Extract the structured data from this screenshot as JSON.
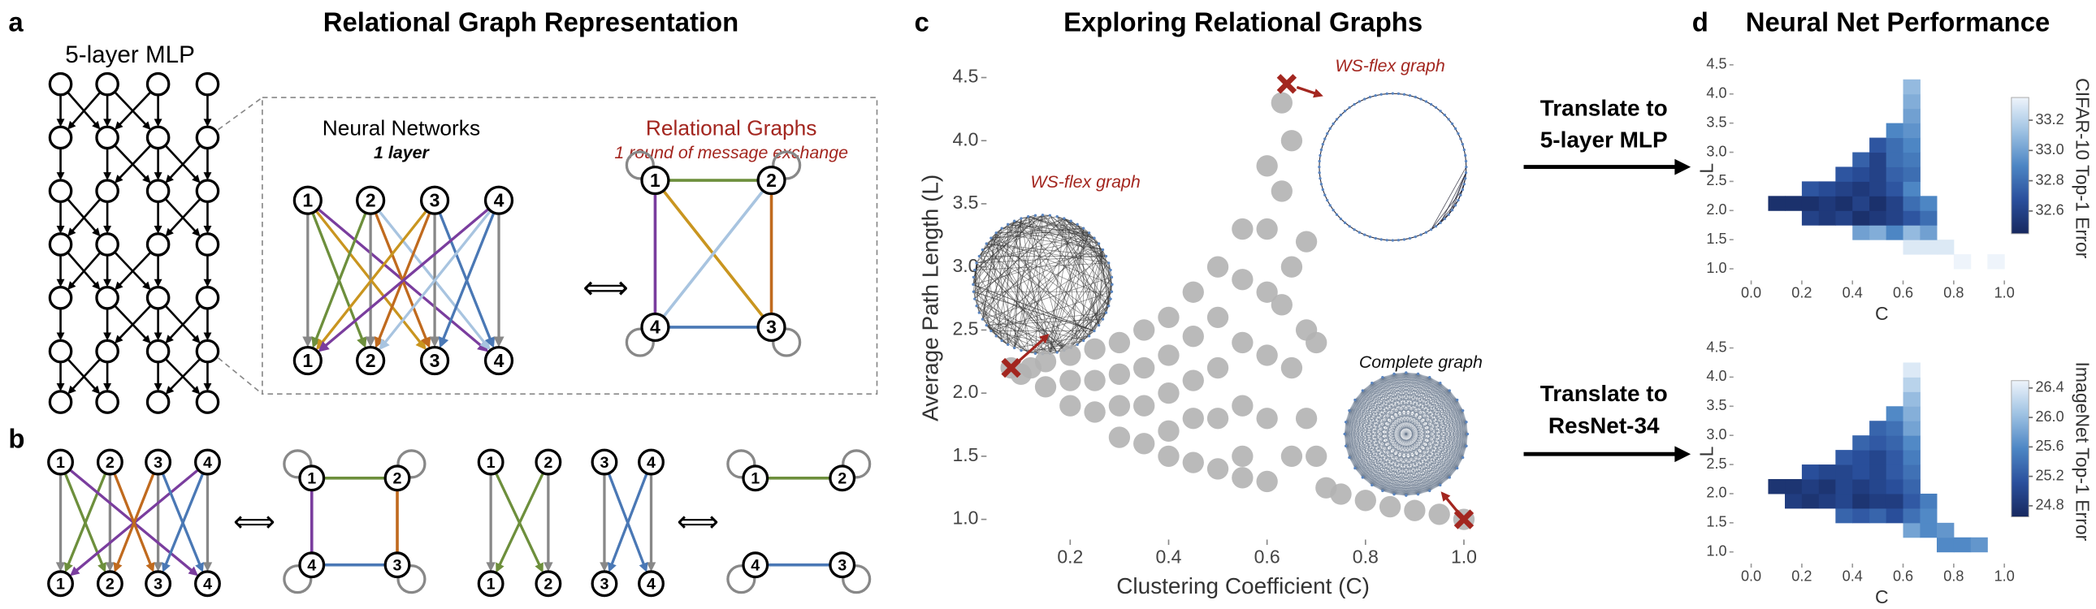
{
  "panels": {
    "a": {
      "label": "a",
      "title": "Relational Graph Representation",
      "mlp_title": "5-layer MLP",
      "nn_title": "Neural Networks",
      "nn_subtitle": "1 layer",
      "rg_title": "Relational Graphs",
      "rg_subtitle": "1 round of message exchange",
      "nodes": [
        "1",
        "2",
        "3",
        "4"
      ],
      "equiv": "⟺"
    },
    "b": {
      "label": "b",
      "nodes": [
        "1",
        "2",
        "3",
        "4"
      ],
      "equiv": "⟺"
    },
    "c": {
      "label": "c"
    },
    "d": {
      "label": "d",
      "title": "Neural Net Performance"
    },
    "translate": [
      [
        "Translate to",
        "5-layer MLP"
      ],
      [
        "Translate to",
        "ResNet-34"
      ]
    ]
  },
  "chart_data": [
    {
      "type": "scatter",
      "title": "Exploring Relational Graphs",
      "xlabel": "Clustering Coefficient (C)",
      "ylabel": "Average Path Length (L)",
      "xlim": [
        0.03,
        1.04
      ],
      "ylim": [
        0.84,
        4.67
      ],
      "xticks": [
        0.2,
        0.4,
        0.6,
        0.8,
        {
          "value": 1,
          "label": "1.0"
        }
      ],
      "yticks": [
        {
          "value": 1,
          "label": "1.0"
        },
        1.5,
        {
          "value": 2,
          "label": "2.0"
        },
        2.5,
        {
          "value": 3,
          "label": "3.0"
        },
        3.5,
        {
          "value": 4,
          "label": "4.0"
        },
        4.5
      ],
      "series": [
        {
          "color": "#b3b3b3",
          "marker": "dot",
          "x": [
            0.08,
            0.1,
            0.12,
            0.15,
            0.15,
            0.2,
            0.2,
            0.2,
            0.25,
            0.25,
            0.25,
            0.3,
            0.3,
            0.3,
            0.3,
            0.35,
            0.35,
            0.35,
            0.35,
            0.4,
            0.4,
            0.4,
            0.4,
            0.4,
            0.45,
            0.45,
            0.45,
            0.45,
            0.45,
            0.5,
            0.5,
            0.5,
            0.5,
            0.5,
            0.55,
            0.55,
            0.55,
            0.55,
            0.55,
            0.55,
            0.6,
            0.6,
            0.6,
            0.6,
            0.6,
            0.6,
            0.63,
            0.63,
            0.63,
            0.65,
            0.65,
            0.65,
            0.65,
            0.68,
            0.68,
            0.68,
            0.7,
            0.7,
            0.72,
            0.75,
            0.8,
            0.85,
            0.9,
            0.95,
            1.0
          ],
          "values": [
            2.2,
            2.15,
            2.2,
            2.25,
            2.05,
            2.3,
            2.1,
            1.9,
            2.35,
            2.1,
            1.85,
            2.4,
            2.15,
            1.9,
            1.65,
            2.5,
            2.2,
            1.9,
            1.6,
            2.6,
            2.3,
            2.0,
            1.7,
            1.5,
            2.8,
            2.45,
            2.1,
            1.8,
            1.45,
            3.0,
            2.6,
            2.2,
            1.8,
            1.4,
            3.3,
            2.9,
            2.4,
            1.9,
            1.5,
            1.33,
            3.8,
            3.3,
            2.8,
            2.3,
            1.8,
            1.3,
            4.3,
            3.6,
            2.7,
            4.0,
            3.0,
            2.2,
            1.5,
            3.2,
            2.5,
            1.8,
            2.4,
            1.5,
            1.25,
            1.2,
            1.15,
            1.1,
            1.07,
            1.04,
            1.0
          ]
        },
        {
          "color": "#a3261f",
          "marker": "x",
          "x": [
            0.08,
            0.64,
            1.0
          ],
          "values": [
            2.2,
            4.45,
            1.0
          ]
        }
      ],
      "annotations": [
        "WS-flex graph",
        "WS-flex graph",
        "Complete graph"
      ]
    },
    {
      "type": "heatmap",
      "xlabel": "C",
      "ylabel": "L",
      "colorbar_label": "CIFAR-10 Top-1 Error",
      "xlim": [
        -0.07,
        1.07
      ],
      "ylim": [
        0.8,
        4.65
      ],
      "xticks": [
        {
          "value": 0,
          "label": "0.0"
        },
        0.2,
        0.4,
        0.6,
        0.8,
        {
          "value": 1,
          "label": "1.0"
        }
      ],
      "yticks": [
        {
          "value": 1,
          "label": "1.0"
        },
        1.5,
        {
          "value": 2,
          "label": "2.0"
        },
        2.5,
        {
          "value": 3,
          "label": "3.0"
        },
        3.5,
        {
          "value": 4,
          "label": "4.0"
        },
        4.5
      ],
      "xbins": [
        0.067,
        0.133,
        0.2,
        0.267,
        0.333,
        0.4,
        0.467,
        0.533,
        0.6,
        0.667,
        0.733,
        0.8,
        0.867,
        0.933,
        1.0
      ],
      "ybins": [
        1.0,
        1.25,
        1.5,
        1.75,
        2.0,
        2.25,
        2.5,
        2.75,
        3.0,
        3.25,
        3.5,
        3.75,
        4.0,
        4.25,
        4.5
      ],
      "clim": [
        32.45,
        33.35
      ],
      "cticks": [
        32.6,
        32.8,
        {
          "value": 33,
          "label": "33.0"
        },
        33.2
      ],
      "values": [
        [
          null,
          null,
          null,
          null,
          null,
          null,
          null,
          null,
          null,
          null,
          null,
          33.35,
          null,
          33.35
        ],
        [
          null,
          null,
          null,
          null,
          null,
          null,
          null,
          null,
          33.3,
          33.3,
          33.3,
          null,
          null,
          null
        ],
        [
          null,
          null,
          null,
          null,
          null,
          33.0,
          33.05,
          32.9,
          33.1,
          33.0,
          null,
          null,
          null,
          null
        ],
        [
          null,
          null,
          32.6,
          32.55,
          32.6,
          32.5,
          32.55,
          32.6,
          32.7,
          32.8,
          null,
          null,
          null,
          null
        ],
        [
          32.5,
          32.5,
          32.5,
          32.55,
          32.5,
          32.6,
          32.5,
          32.6,
          32.8,
          32.9,
          null,
          null,
          null,
          null
        ],
        [
          null,
          null,
          32.7,
          32.65,
          32.6,
          32.55,
          32.6,
          32.7,
          32.9,
          null,
          null,
          null,
          null,
          null
        ],
        [
          null,
          null,
          null,
          null,
          32.7,
          32.65,
          32.6,
          32.75,
          32.8,
          null,
          null,
          null,
          null,
          null
        ],
        [
          null,
          null,
          null,
          null,
          null,
          32.75,
          32.6,
          32.8,
          32.85,
          null,
          null,
          null,
          null,
          null
        ],
        [
          null,
          null,
          null,
          null,
          null,
          null,
          32.7,
          32.8,
          32.9,
          null,
          null,
          null,
          null,
          null
        ],
        [
          null,
          null,
          null,
          null,
          null,
          null,
          null,
          32.9,
          32.95,
          null,
          null,
          null,
          null,
          null
        ],
        [
          null,
          null,
          null,
          null,
          null,
          null,
          null,
          null,
          33.0,
          null,
          null,
          null,
          null,
          null
        ],
        [
          null,
          null,
          null,
          null,
          null,
          null,
          null,
          null,
          33.05,
          null,
          null,
          null,
          null,
          null
        ],
        [
          null,
          null,
          null,
          null,
          null,
          null,
          null,
          null,
          33.1,
          null,
          null,
          null,
          null,
          null
        ],
        [
          null,
          null,
          null,
          null,
          null,
          null,
          null,
          null,
          null,
          null,
          null,
          null,
          null,
          null
        ]
      ]
    },
    {
      "type": "heatmap",
      "xlabel": "C",
      "ylabel": "L",
      "colorbar_label": "ImageNet Top-1 Error",
      "xlim": [
        -0.07,
        1.07
      ],
      "ylim": [
        0.8,
        4.65
      ],
      "xticks": [
        {
          "value": 0,
          "label": "0.0"
        },
        0.2,
        0.4,
        0.6,
        0.8,
        {
          "value": 1,
          "label": "1.0"
        }
      ],
      "yticks": [
        {
          "value": 1,
          "label": "1.0"
        },
        1.5,
        {
          "value": 2,
          "label": "2.0"
        },
        2.5,
        {
          "value": 3,
          "label": "3.0"
        },
        3.5,
        {
          "value": 4,
          "label": "4.0"
        },
        4.5
      ],
      "xbins": [
        0.067,
        0.133,
        0.2,
        0.267,
        0.333,
        0.4,
        0.467,
        0.533,
        0.6,
        0.667,
        0.733,
        0.8,
        0.867,
        0.933,
        1.0
      ],
      "ybins": [
        1.0,
        1.25,
        1.5,
        1.75,
        2.0,
        2.25,
        2.5,
        2.75,
        3.0,
        3.25,
        3.5,
        3.75,
        4.0,
        4.25,
        4.5
      ],
      "clim": [
        24.65,
        26.5
      ],
      "cticks": [
        24.8,
        25.2,
        25.6,
        {
          "value": 26,
          "label": "26.0"
        },
        26.4
      ],
      "values": [
        [
          null,
          null,
          null,
          null,
          null,
          null,
          null,
          null,
          null,
          null,
          25.6,
          25.6,
          25.7,
          null
        ],
        [
          null,
          null,
          null,
          null,
          null,
          null,
          null,
          null,
          25.8,
          25.6,
          25.7,
          null,
          null,
          null
        ],
        [
          null,
          null,
          null,
          null,
          25.3,
          25.2,
          25.3,
          25.1,
          25.4,
          25.6,
          null,
          null,
          null,
          null
        ],
        [
          null,
          24.9,
          24.8,
          24.9,
          25.0,
          24.8,
          24.9,
          24.9,
          25.2,
          25.5,
          null,
          null,
          null,
          null
        ],
        [
          24.8,
          24.8,
          24.9,
          24.8,
          25.0,
          24.9,
          25.0,
          25.1,
          25.3,
          null,
          null,
          null,
          null,
          null
        ],
        [
          null,
          null,
          25.1,
          25.0,
          25.0,
          25.1,
          25.0,
          25.2,
          25.4,
          null,
          null,
          null,
          null,
          null
        ],
        [
          null,
          null,
          null,
          null,
          25.2,
          25.1,
          25.0,
          25.2,
          25.5,
          null,
          null,
          null,
          null,
          null
        ],
        [
          null,
          null,
          null,
          null,
          null,
          25.3,
          25.2,
          25.3,
          25.6,
          null,
          null,
          null,
          null,
          null
        ],
        [
          null,
          null,
          null,
          null,
          null,
          null,
          25.3,
          25.4,
          25.8,
          null,
          null,
          null,
          null,
          null
        ],
        [
          null,
          null,
          null,
          null,
          null,
          null,
          null,
          25.6,
          25.9,
          null,
          null,
          null,
          null,
          null
        ],
        [
          null,
          null,
          null,
          null,
          null,
          null,
          null,
          null,
          26.0,
          null,
          null,
          null,
          null,
          null
        ],
        [
          null,
          null,
          null,
          null,
          null,
          null,
          null,
          null,
          26.2,
          null,
          null,
          null,
          null,
          null
        ],
        [
          null,
          null,
          null,
          null,
          null,
          null,
          null,
          null,
          26.4,
          null,
          null,
          null,
          null,
          null
        ],
        [
          null,
          null,
          null,
          null,
          null,
          null,
          null,
          null,
          null,
          null,
          null,
          null,
          null,
          null
        ]
      ]
    }
  ]
}
